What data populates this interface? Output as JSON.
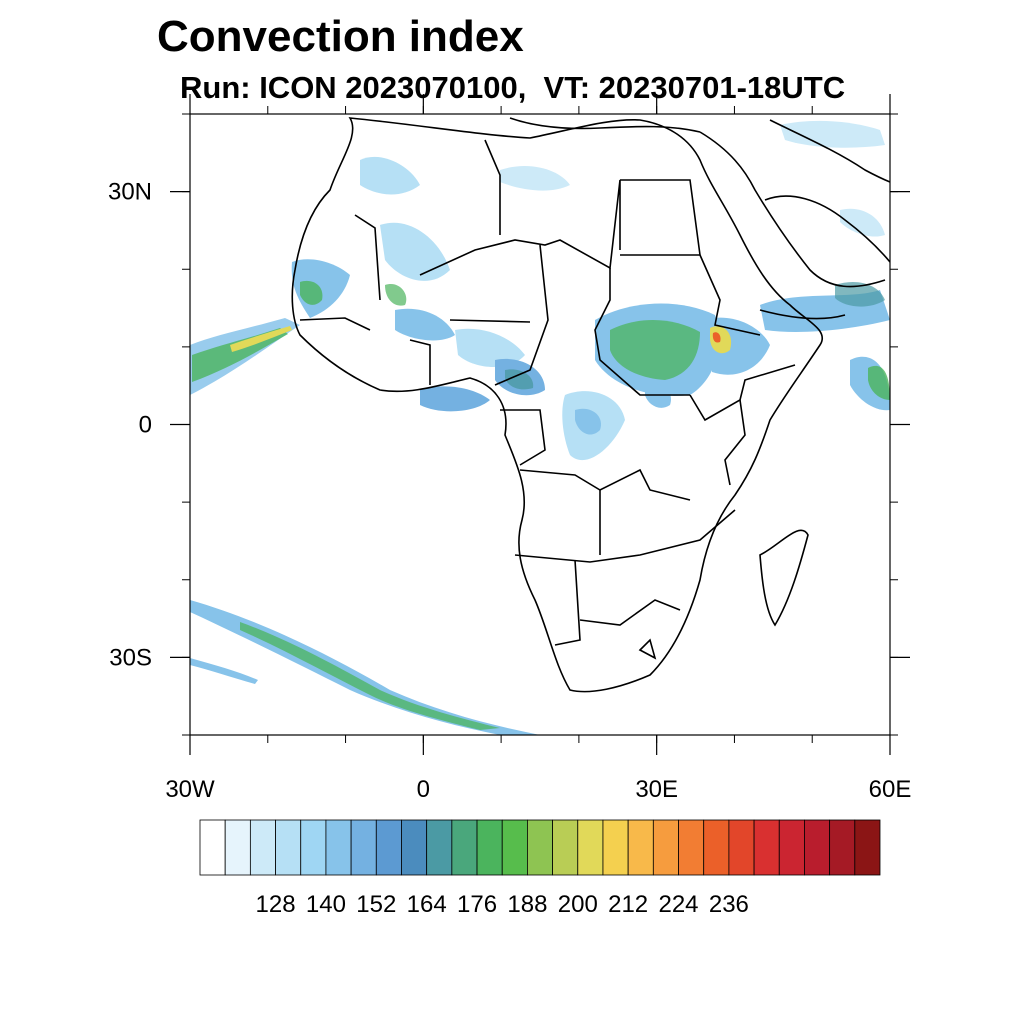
{
  "title": "Convection index",
  "subtitle": "Run: ICON 2023070100,  VT: 20230701-18UTC",
  "map": {
    "projection": "cylindrical-equidistant",
    "lon_range": [
      -30,
      60
    ],
    "lat_range": [
      -40,
      40
    ],
    "lat_ticks": [
      {
        "value": 30,
        "label": "30N"
      },
      {
        "value": 0,
        "label": "0"
      },
      {
        "value": -30,
        "label": "30S"
      }
    ],
    "lon_ticks": [
      {
        "value": -30,
        "label": "30W"
      },
      {
        "value": 0,
        "label": "0"
      },
      {
        "value": 30,
        "label": "30E"
      },
      {
        "value": 60,
        "label": "60E"
      }
    ]
  },
  "colorbar": {
    "colors": [
      "#ffffff",
      "#e6f4fc",
      "#cdeaf8",
      "#b6e0f5",
      "#9fd6f3",
      "#87c3ea",
      "#74b1e1",
      "#5c9ad2",
      "#4b8cbe",
      "#4b9aa4",
      "#4aa77c",
      "#4bb45d",
      "#57bd4c",
      "#8ec452",
      "#b9cd55",
      "#e1d959",
      "#f4d04f",
      "#f8b94a",
      "#f69c3e",
      "#f27d33",
      "#eb6029",
      "#e2462a",
      "#d93030",
      "#cb2531",
      "#b91d2d",
      "#a51a25",
      "#8b1515"
    ],
    "labels": [
      "128",
      "140",
      "152",
      "164",
      "176",
      "188",
      "200",
      "212",
      "224",
      "236"
    ]
  }
}
